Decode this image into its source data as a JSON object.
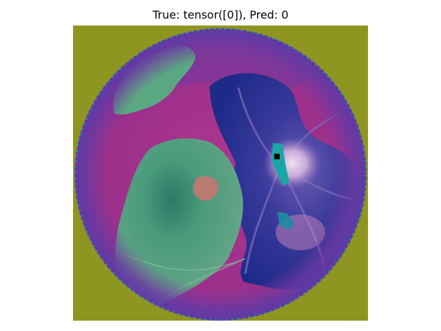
{
  "figure": {
    "title": "True: tensor([0]), Pred: 0"
  },
  "image": {
    "subject": "false-color retinal fundus image",
    "colors": {
      "background_corner": "#8e9520",
      "fundus_magenta": "#9a2f8a",
      "fundus_purple": "#6a3aa2",
      "dark_blue_region": "#2a2f8c",
      "teal_green_region": "#5aa882",
      "dark_teal_center": "#2f7f6a",
      "brown_spot": "#b97a72",
      "optic_disc_highlight": "#e0c8e8",
      "rim_speckle": "#1aa6a6"
    }
  }
}
